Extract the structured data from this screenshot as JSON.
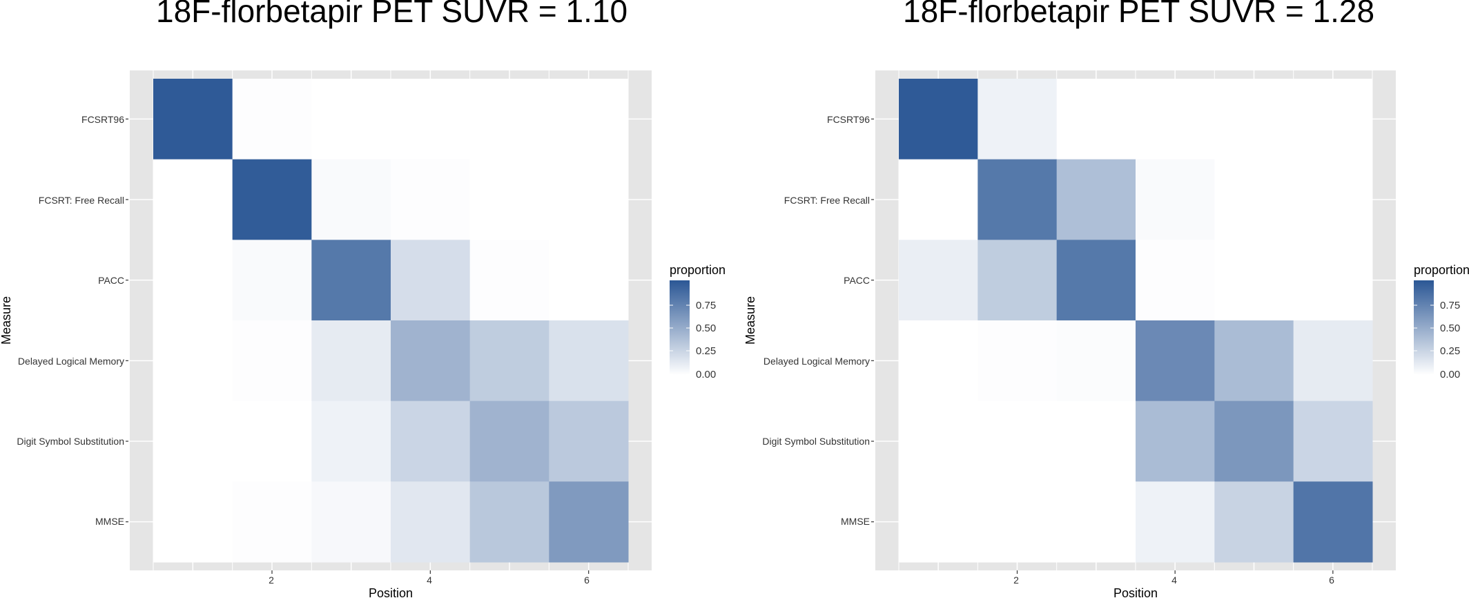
{
  "chart_data": [
    {
      "type": "heatmap",
      "title": "18F-florbetapir PET SUVR = 1.10",
      "xlabel": "Position",
      "ylabel": "Measure",
      "x": [
        1,
        2,
        3,
        4,
        5,
        6
      ],
      "x_ticks": [
        "2",
        "4",
        "6"
      ],
      "y": [
        "FCSRT96",
        "FCSRT: Free Recall",
        "PACC",
        "Delayed Logical Memory",
        "Digit Symbol Substitution",
        "MMSE"
      ],
      "values": [
        [
          0.98,
          0.01,
          0.0,
          0.0,
          0.0,
          0.0
        ],
        [
          0.0,
          0.97,
          0.03,
          0.01,
          0.0,
          0.0
        ],
        [
          0.0,
          0.03,
          0.8,
          0.2,
          0.01,
          0.0
        ],
        [
          0.0,
          0.01,
          0.12,
          0.45,
          0.3,
          0.18
        ],
        [
          0.0,
          0.0,
          0.08,
          0.25,
          0.45,
          0.32
        ],
        [
          0.0,
          0.01,
          0.04,
          0.14,
          0.33,
          0.6
        ]
      ],
      "fill_scale": {
        "low": "#ffffff",
        "high": "#2b5795",
        "min": 0,
        "max": 1
      },
      "grid": true,
      "legend": {
        "title": "proportion",
        "position": "right",
        "breaks": [
          "0.75",
          "0.50",
          "0.25",
          "0.00"
        ]
      }
    },
    {
      "type": "heatmap",
      "title": "18F-florbetapir PET SUVR = 1.28",
      "xlabel": "Position",
      "ylabel": "Measure",
      "x": [
        1,
        2,
        3,
        4,
        5,
        6
      ],
      "x_ticks": [
        "2",
        "4",
        "6"
      ],
      "y": [
        "FCSRT96",
        "FCSRT: Free Recall",
        "PACC",
        "Delayed Logical Memory",
        "Digit Symbol Substitution",
        "MMSE"
      ],
      "values": [
        [
          0.98,
          0.08,
          0.0,
          0.0,
          0.0,
          0.0
        ],
        [
          0.0,
          0.8,
          0.38,
          0.03,
          0.0,
          0.0
        ],
        [
          0.1,
          0.3,
          0.8,
          0.01,
          0.0,
          0.0
        ],
        [
          0.0,
          0.01,
          0.02,
          0.7,
          0.4,
          0.12
        ],
        [
          0.0,
          0.0,
          0.0,
          0.4,
          0.62,
          0.25
        ],
        [
          0.0,
          0.0,
          0.0,
          0.08,
          0.26,
          0.82
        ]
      ],
      "fill_scale": {
        "low": "#ffffff",
        "high": "#2b5795",
        "min": 0,
        "max": 1
      },
      "grid": true,
      "legend": {
        "title": "proportion",
        "position": "right",
        "breaks": [
          "0.75",
          "0.50",
          "0.25",
          "0.00"
        ]
      }
    }
  ]
}
